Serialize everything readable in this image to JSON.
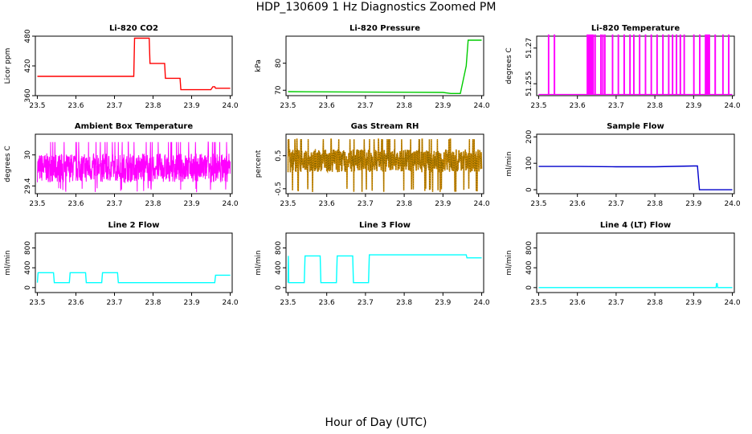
{
  "figure": {
    "title": "HDP_130609  1 Hz Diagnostics Zoomed PM",
    "xlabel": "Hour of Day (UTC)"
  },
  "chart_data": [
    {
      "type": "line",
      "title": "Li-820 CO2",
      "ylabel": "Licor ppm",
      "color": "#ff0000",
      "xlim": [
        23.5,
        24.0
      ],
      "ylim": [
        360,
        480
      ],
      "xticks": [
        "23.5",
        "23.6",
        "23.7",
        "23.8",
        "23.9",
        "24.0"
      ],
      "yticks": [
        360,
        420,
        480
      ],
      "series": [
        {
          "x": [
            23.5,
            23.75,
            23.752,
            23.79,
            23.792,
            23.83,
            23.832,
            23.87,
            23.872,
            23.95,
            23.955,
            23.96,
            23.962,
            24.0
          ],
          "y": [
            399,
            399,
            476,
            476,
            425,
            425,
            395,
            395,
            372,
            372,
            378,
            378,
            375,
            375
          ]
        }
      ]
    },
    {
      "type": "line",
      "title": "Li-820 Pressure",
      "ylabel": "kPa",
      "color": "#00cc00",
      "xlim": [
        23.5,
        24.0
      ],
      "ylim": [
        68,
        90
      ],
      "xticks": [
        "23.5",
        "23.6",
        "23.7",
        "23.8",
        "23.9",
        "24.0"
      ],
      "yticks": [
        70,
        80
      ],
      "series": [
        {
          "x": [
            23.5,
            23.7,
            23.9,
            23.92,
            23.945,
            23.96,
            23.965,
            24.0
          ],
          "y": [
            69.5,
            69.3,
            69.2,
            68.8,
            68.8,
            79,
            88.5,
            88.5
          ]
        }
      ]
    },
    {
      "type": "line",
      "title": "Li-820 Temperature",
      "ylabel": "degrees C",
      "color": "#ff00ff",
      "xlim": [
        23.5,
        24.0
      ],
      "ylim": [
        51.25,
        51.275
      ],
      "xticks": [
        "23.5",
        "23.6",
        "23.7",
        "23.8",
        "23.9",
        "24.0"
      ],
      "yticks": [
        51.255,
        51.27
      ],
      "series": [
        {
          "base": 51.2505,
          "high": 51.2755,
          "spikes": [
            23.525,
            23.54,
            23.625,
            23.628,
            23.63,
            23.633,
            23.636,
            23.64,
            23.645,
            23.66,
            23.665,
            23.67,
            23.69,
            23.705,
            23.72,
            23.735,
            23.745,
            23.76,
            23.775,
            23.79,
            23.805,
            23.82,
            23.835,
            23.845,
            23.855,
            23.865,
            23.875,
            23.9,
            23.915,
            23.93,
            23.933,
            23.936,
            23.94,
            23.955,
            23.975,
            23.99
          ]
        }
      ]
    },
    {
      "type": "line",
      "title": "Ambient Box Temperature",
      "ylabel": "degrees C",
      "color": "#ff00ff",
      "xlim": [
        23.5,
        24.0
      ],
      "ylim": [
        29.25,
        30.4
      ],
      "xticks": [
        "23.5",
        "23.6",
        "23.7",
        "23.8",
        "23.9",
        "24.0"
      ],
      "yticks": [
        29.4,
        30.0
      ],
      "noise": {
        "center": 29.75,
        "amplitude": 0.28,
        "min": 29.28,
        "max": 30.25,
        "seed": 7
      }
    },
    {
      "type": "scatter",
      "title": "Gas Stream RH",
      "ylabel": "percent",
      "color": "#cc8800",
      "xlim": [
        23.5,
        24.0
      ],
      "ylim": [
        -0.65,
        1.15
      ],
      "xticks": [
        "23.5",
        "23.6",
        "23.7",
        "23.8",
        "23.9",
        "24.0"
      ],
      "yticks": [
        -0.5,
        0.5
      ],
      "noise": {
        "center": 0.35,
        "amplitude": 0.35,
        "min": -0.6,
        "max": 1.0,
        "seed": 13
      }
    },
    {
      "type": "line",
      "title": "Sample Flow",
      "ylabel": "ml/min",
      "color": "#0000cc",
      "xlim": [
        23.5,
        24.0
      ],
      "ylim": [
        -15,
        210
      ],
      "xticks": [
        "23.5",
        "23.6",
        "23.7",
        "23.8",
        "23.9",
        "24.0"
      ],
      "yticks": [
        0,
        100,
        200
      ],
      "series": [
        {
          "x": [
            23.5,
            23.6,
            23.7,
            23.8,
            23.9,
            23.91,
            23.915,
            24.0
          ],
          "y": [
            88,
            88,
            87,
            87,
            90,
            90,
            0,
            0
          ]
        }
      ]
    },
    {
      "type": "line",
      "title": "Line 2 Flow",
      "ylabel": "ml/min",
      "color": "#00ffff",
      "xlim": [
        23.5,
        24.0
      ],
      "ylim": [
        -100,
        1100
      ],
      "xticks": [
        "23.5",
        "23.6",
        "23.7",
        "23.8",
        "23.9",
        "24.0"
      ],
      "yticks": [
        0,
        400,
        800
      ],
      "series": [
        {
          "x": [
            23.5,
            23.502,
            23.542,
            23.544,
            23.583,
            23.585,
            23.625,
            23.627,
            23.667,
            23.669,
            23.708,
            23.71,
            23.96,
            23.962,
            24.0
          ],
          "y": [
            100,
            300,
            300,
            100,
            100,
            300,
            300,
            100,
            100,
            300,
            300,
            100,
            100,
            250,
            250
          ]
        }
      ]
    },
    {
      "type": "line",
      "title": "Line 3 Flow",
      "ylabel": "ml/min",
      "color": "#00ffff",
      "xlim": [
        23.5,
        24.0
      ],
      "ylim": [
        -100,
        1100
      ],
      "xticks": [
        "23.5",
        "23.6",
        "23.7",
        "23.8",
        "23.9",
        "24.0"
      ],
      "yticks": [
        0,
        400,
        800
      ],
      "series": [
        {
          "x": [
            23.5,
            23.501,
            23.502,
            23.542,
            23.544,
            23.583,
            23.585,
            23.625,
            23.627,
            23.667,
            23.669,
            23.708,
            23.71,
            23.96,
            23.962,
            24.0
          ],
          "y": [
            100,
            640,
            100,
            100,
            640,
            640,
            100,
            100,
            640,
            640,
            100,
            100,
            660,
            660,
            600,
            600
          ]
        }
      ]
    },
    {
      "type": "line",
      "title": "Line 4 (LT) Flow",
      "ylabel": "ml/min",
      "color": "#00ffff",
      "xlim": [
        23.5,
        24.0
      ],
      "ylim": [
        -100,
        1100
      ],
      "xticks": [
        "23.5",
        "23.6",
        "23.7",
        "23.8",
        "23.9",
        "24.0"
      ],
      "yticks": [
        0,
        400,
        800
      ],
      "series": [
        {
          "x": [
            23.5,
            23.958,
            23.959,
            23.961,
            23.962,
            24.0
          ],
          "y": [
            0,
            0,
            80,
            80,
            0,
            0
          ]
        }
      ]
    }
  ]
}
